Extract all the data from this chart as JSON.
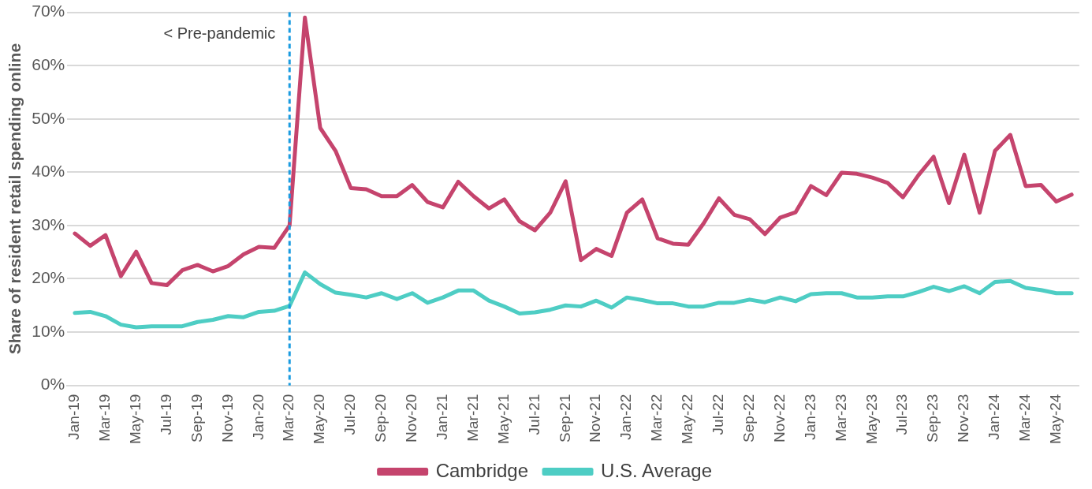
{
  "chart_data": {
    "type": "line",
    "ylabel": "Share of resident retail spending online",
    "categories": [
      "Jan-19",
      null,
      "Mar-19",
      null,
      "May-19",
      null,
      "Jul-19",
      null,
      "Sep-19",
      null,
      "Nov-19",
      null,
      "Jan-20",
      null,
      "Mar-20",
      null,
      "May-20",
      null,
      "Jul-20",
      null,
      "Sep-20",
      null,
      "Nov-20",
      null,
      "Jan-21",
      null,
      "Mar-21",
      null,
      "May-21",
      null,
      "Jul-21",
      null,
      "Sep-21",
      null,
      "Nov-21",
      null,
      "Jan-22",
      null,
      "Mar-22",
      null,
      "May-22",
      null,
      "Jul-22",
      null,
      "Sep-22",
      null,
      "Nov-22",
      null,
      "Jan-23",
      null,
      "Mar-23",
      null,
      "May-23",
      null,
      "Jul-23",
      null,
      "Sep-23",
      null,
      "Nov-23",
      null,
      "Jan-24",
      null,
      "Mar-24",
      null,
      "May-24",
      null
    ],
    "series": [
      {
        "name": "Cambridge",
        "color": "#c5446d",
        "values": [
          28.5,
          26.2,
          28.2,
          20.5,
          25.1,
          19.2,
          18.8,
          21.6,
          22.6,
          21.4,
          22.4,
          24.6,
          26,
          25.8,
          30,
          69,
          48.3,
          44,
          37,
          36.8,
          35.5,
          35.5,
          37.6,
          34.4,
          33.4,
          38.2,
          35.5,
          33.2,
          34.9,
          30.8,
          29.1,
          32.4,
          38.3,
          23.5,
          25.6,
          24.3,
          32.4,
          34.9,
          27.6,
          26.6,
          26.4,
          30.4,
          35.1,
          32,
          31.2,
          28.4,
          31.5,
          32.5,
          37.4,
          35.7,
          39.9,
          39.7,
          39,
          38,
          35.3,
          39.4,
          42.9,
          34.2,
          43.3,
          32.4,
          44,
          47,
          37.4,
          37.6,
          34.5,
          35.8
        ]
      },
      {
        "name": "U.S. Average",
        "color": "#4ecdc4",
        "values": [
          13.6,
          13.8,
          13,
          11.4,
          10.9,
          11.1,
          11.1,
          11.1,
          11.9,
          12.3,
          13,
          12.8,
          13.8,
          14,
          14.9,
          21.2,
          19,
          17.4,
          17,
          16.5,
          17.3,
          16.2,
          17.3,
          15.5,
          16.5,
          17.8,
          17.8,
          15.9,
          14.8,
          13.5,
          13.7,
          14.2,
          15,
          14.8,
          15.9,
          14.6,
          16.5,
          16,
          15.4,
          15.4,
          14.8,
          14.8,
          15.5,
          15.5,
          16.1,
          15.6,
          16.5,
          15.8,
          17.1,
          17.3,
          17.3,
          16.5,
          16.5,
          16.7,
          16.7,
          17.5,
          18.5,
          17.7,
          18.6,
          17.3,
          19.4,
          19.6,
          18.3,
          17.9,
          17.3,
          17.3
        ]
      }
    ],
    "ylim": [
      0,
      70
    ],
    "yticks": [
      {
        "value": 0,
        "label": "0%"
      },
      {
        "value": 10,
        "label": "10%"
      },
      {
        "value": 20,
        "label": "20%"
      },
      {
        "value": 30,
        "label": "30%"
      },
      {
        "value": 40,
        "label": "40%"
      },
      {
        "value": 50,
        "label": "50%"
      },
      {
        "value": 60,
        "label": "60%"
      },
      {
        "value": 70,
        "label": "70%"
      }
    ],
    "ref_lines": [
      {
        "axis": "x",
        "value": "Mar-20",
        "label": "< Pre-pandemic",
        "color": "#1a9be0",
        "line_style": "dashed"
      }
    ],
    "grid": "y",
    "legend": "bottom",
    "marker": "none",
    "line_style": "solid"
  }
}
